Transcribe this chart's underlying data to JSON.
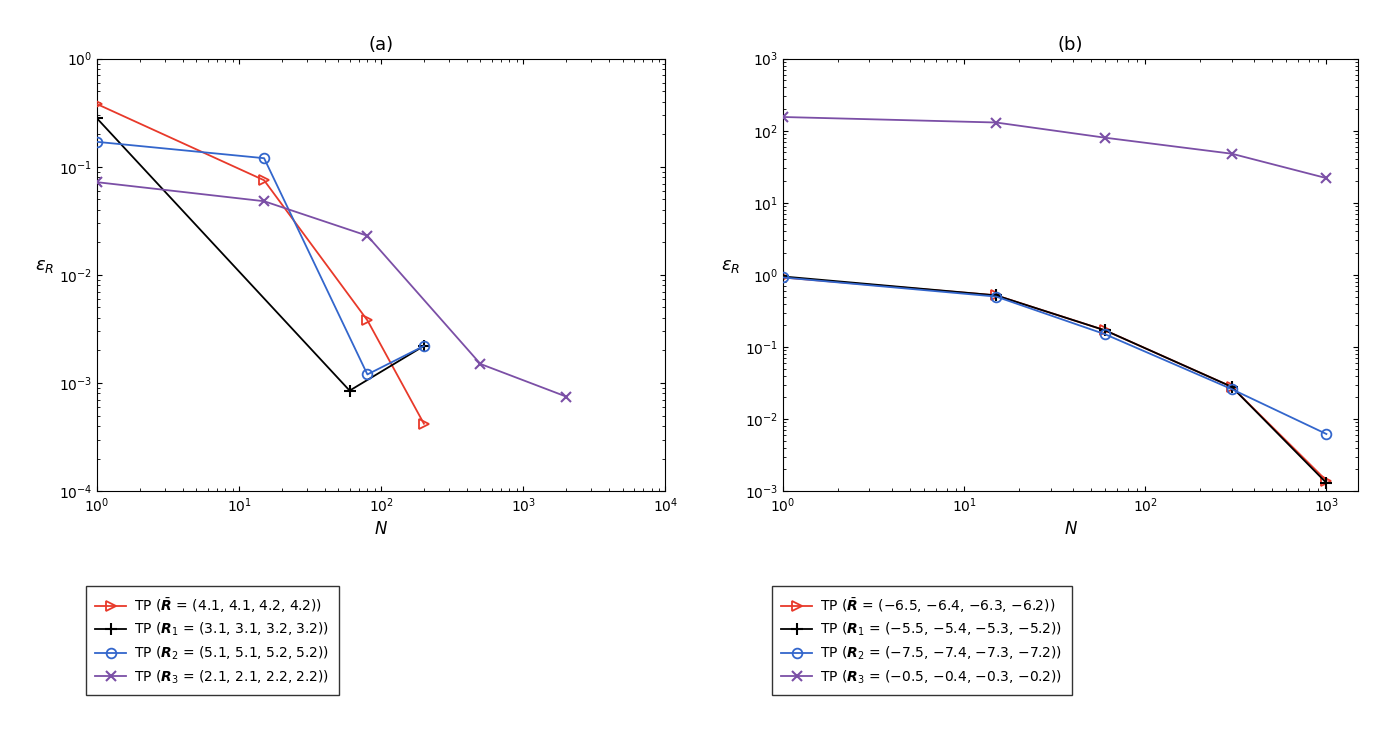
{
  "panel_a": {
    "title": "(a)",
    "xlabel": "N",
    "xlim": [
      1,
      10000
    ],
    "ylim": [
      0.0001,
      1.0
    ],
    "series": [
      {
        "color": "#e8392a",
        "marker": "triangle_right",
        "x": [
          1,
          15,
          80,
          200
        ],
        "y": [
          0.38,
          0.075,
          0.0038,
          0.00042
        ]
      },
      {
        "color": "#000000",
        "marker": "plus",
        "x": [
          1,
          60,
          200
        ],
        "y": [
          0.28,
          0.00085,
          0.0022
        ]
      },
      {
        "color": "#3366cc",
        "marker": "circle",
        "x": [
          1,
          15,
          80,
          200
        ],
        "y": [
          0.17,
          0.12,
          0.0012,
          0.0022
        ]
      },
      {
        "color": "#7b4fa6",
        "marker": "cross",
        "x": [
          1,
          15,
          80,
          500,
          2000
        ],
        "y": [
          0.072,
          0.048,
          0.023,
          0.0015,
          0.00075
        ]
      }
    ]
  },
  "panel_b": {
    "title": "(b)",
    "xlabel": "N",
    "xlim": [
      1,
      1500
    ],
    "ylim": [
      0.001,
      1000
    ],
    "series": [
      {
        "color": "#e8392a",
        "marker": "triangle_right",
        "x": [
          1,
          15,
          60,
          300,
          1000
        ],
        "y": [
          0.92,
          0.52,
          0.17,
          0.028,
          0.0014
        ]
      },
      {
        "color": "#000000",
        "marker": "plus",
        "x": [
          1,
          15,
          60,
          300,
          1000
        ],
        "y": [
          0.95,
          0.52,
          0.17,
          0.028,
          0.0013
        ]
      },
      {
        "color": "#3366cc",
        "marker": "circle",
        "x": [
          1,
          15,
          60,
          300,
          1000
        ],
        "y": [
          0.92,
          0.5,
          0.15,
          0.026,
          0.0062
        ]
      },
      {
        "color": "#7b4fa6",
        "marker": "cross",
        "x": [
          1,
          15,
          60,
          300,
          1000
        ],
        "y": [
          155,
          130,
          80,
          48,
          22
        ]
      }
    ]
  },
  "legend_a_labels": [
    "TP ($\\bar{\\boldsymbol{R}}$ = (4.1, 4.1, 4.2, 4.2))",
    "TP ($\\boldsymbol{R}_1$ = (3.1, 3.1, 3.2, 3.2))",
    "TP ($\\boldsymbol{R}_2$ = (5.1, 5.1, 5.2, 5.2))",
    "TP ($\\boldsymbol{R}_3$ = (2.1, 2.1, 2.2, 2.2))"
  ],
  "legend_b_labels": [
    "TP ($\\bar{\\boldsymbol{R}}$ = (−6.5, −6.4, −6.3, −6.2))",
    "TP ($\\boldsymbol{R}_1$ = (−5.5, −5.4, −5.3, −5.2))",
    "TP ($\\boldsymbol{R}_2$ = (−7.5, −7.4, −7.3, −7.2))",
    "TP ($\\boldsymbol{R}_3$ = (−0.5, −0.4, −0.3, −0.2))"
  ],
  "colors": [
    "#e8392a",
    "#000000",
    "#3366cc",
    "#7b4fa6"
  ],
  "markers": [
    "triangle_right",
    "plus",
    "circle",
    "cross"
  ],
  "fontsize_title": 13,
  "fontsize_label": 12,
  "fontsize_tick": 10,
  "fontsize_legend": 10,
  "linewidth": 1.3,
  "markersize": 7
}
